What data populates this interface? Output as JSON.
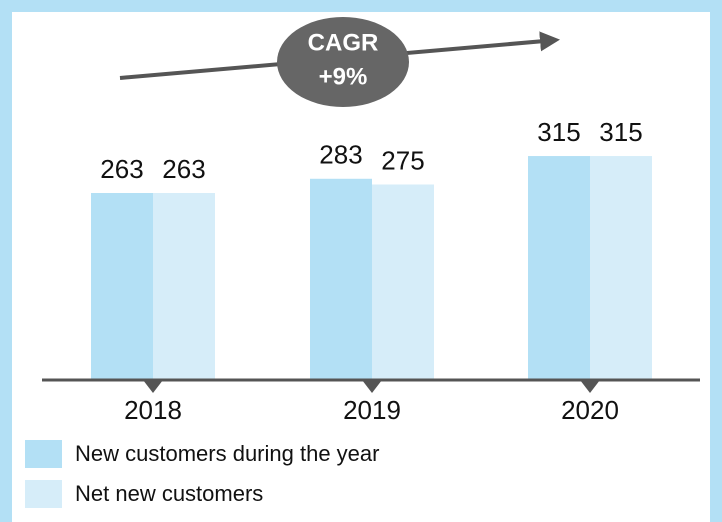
{
  "chart_data": {
    "type": "bar",
    "categories": [
      "2018",
      "2019",
      "2020"
    ],
    "series": [
      {
        "name": "New customers during the year",
        "color": "#b3e0f5",
        "values": [
          263,
          283,
          315
        ]
      },
      {
        "name": "Net new customers",
        "color": "#d6edf9",
        "values": [
          263,
          275,
          315
        ]
      }
    ],
    "annotations": [
      "CAGR",
      "+9%"
    ]
  }
}
